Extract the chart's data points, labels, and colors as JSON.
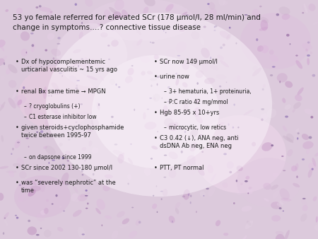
{
  "title": "53 yo female referred for elevated SCr (178 μmol/l, 28 ml/min) and\nchange in symptoms….? connective tissue disease",
  "title_fontsize": 7.5,
  "text_color": "#1a1a1a",
  "left_bullets": [
    {
      "level": 0,
      "text": "Dx of hypocomplementemic\nurticarial vasculitis ~ 15 yrs ago"
    },
    {
      "level": 0,
      "text": "renal Bx same time ➞ MPGN"
    },
    {
      "level": 1,
      "text": "? cryoglobulins (+)"
    },
    {
      "level": 1,
      "text": "C1 esterase inhibitor low"
    },
    {
      "level": 0,
      "text": "given steroids+cyclophosphamide\ntwice between 1995-97"
    },
    {
      "level": 1,
      "text": "on dapsone since 1999"
    },
    {
      "level": 0,
      "text": "SCr since 2002 130-180 μmol/l"
    },
    {
      "level": 0,
      "text": "was “severely nephrotic” at the\ntime"
    }
  ],
  "right_bullets": [
    {
      "level": 0,
      "text": "SCr now 149 μmol/l"
    },
    {
      "level": 0,
      "text": "urine now"
    },
    {
      "level": 1,
      "text": "3+ hematuria, 1+ proteinuria,"
    },
    {
      "level": 1,
      "text": "P:C ratio 42 mg/mmol"
    },
    {
      "level": 0,
      "text": "Hgb 85-95 x 10+yrs"
    },
    {
      "level": 1,
      "text": "microcytic, low retics"
    },
    {
      "level": 0,
      "text": "C3 0.42 (↓), ANA neg, anti\ndsDNA Ab neg, ENA neg"
    },
    {
      "level": 0,
      "text": "PTT, PT normal"
    }
  ],
  "bullet_char": "•",
  "sub_bullet_char": "–",
  "font_size": 6.0,
  "sub_font_size": 5.5,
  "bg_base": "#e8d4e0",
  "bg_light": "#f4eaf2"
}
